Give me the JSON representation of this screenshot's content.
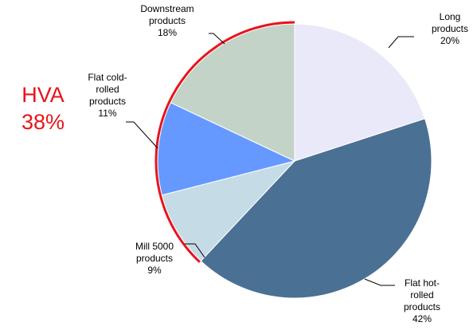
{
  "chart_data": {
    "type": "pie",
    "categories": [
      "Long\nproducts",
      "Flat hot-\nrolled\nproducts",
      "Mill 5000\nproducts",
      "Flat cold-\nrolled\nproducts",
      "Downstream\nproducts"
    ],
    "values": [
      20,
      42,
      9,
      11,
      18
    ],
    "value_labels": [
      "20%",
      "42%",
      "9%",
      "11%",
      "18%"
    ],
    "colors": [
      "#e9e9f9",
      "#4a7094",
      "#c5dbe6",
      "#6699ff",
      "#c4d3c8"
    ],
    "annotation": {
      "label": "HVA",
      "value": 38,
      "value_label": "38%",
      "color": "#e8141c"
    }
  }
}
